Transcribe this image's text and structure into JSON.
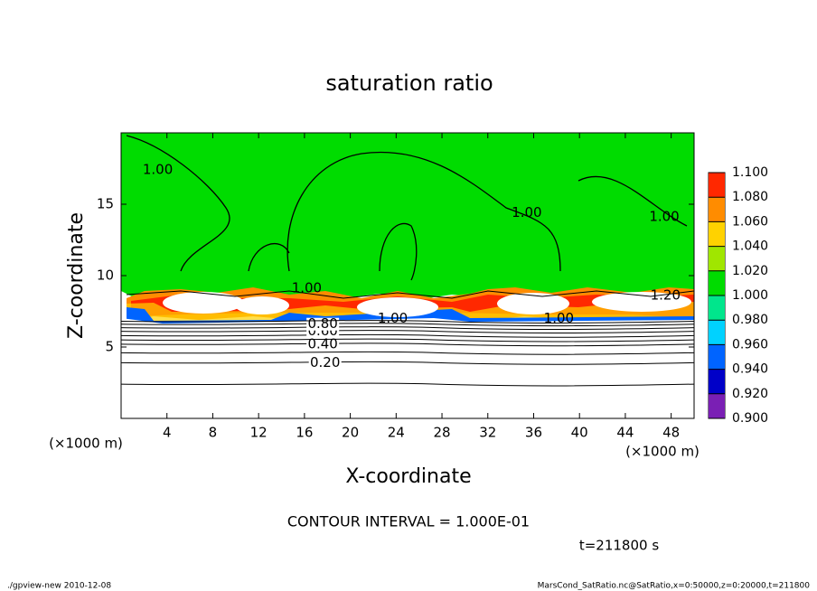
{
  "chart_data": {
    "type": "contour",
    "title": "saturation ratio",
    "x_label": "X-coordinate",
    "y_label": "Z-coordinate",
    "x_unit": "(×1000 m)",
    "x_unit_right": "(×1000 m)",
    "xlim": [
      0,
      50
    ],
    "ylim": [
      0,
      20
    ],
    "xticks": [
      4,
      8,
      12,
      16,
      20,
      24,
      28,
      32,
      36,
      40,
      44,
      48
    ],
    "yticks": [
      5,
      10,
      15
    ],
    "colorbar_ticks": [
      {
        "value": 0.9,
        "label": "0.900"
      },
      {
        "value": 0.92,
        "label": "0.920"
      },
      {
        "value": 0.94,
        "label": "0.940"
      },
      {
        "value": 0.96,
        "label": "0.960"
      },
      {
        "value": 0.98,
        "label": "0.980"
      },
      {
        "value": 1.0,
        "label": "1.000"
      },
      {
        "value": 1.02,
        "label": "1.020"
      },
      {
        "value": 1.04,
        "label": "1.040"
      },
      {
        "value": 1.06,
        "label": "1.060"
      },
      {
        "value": 1.08,
        "label": "1.080"
      },
      {
        "value": 1.1,
        "label": "1.100"
      }
    ],
    "colorbar_colors": [
      "#7a1fb4",
      "#0000c8",
      "#0064ff",
      "#00d2ff",
      "#00e68c",
      "#00dc00",
      "#a0e600",
      "#ffd200",
      "#ff8c00",
      "#ff2800"
    ],
    "contours": [
      {
        "z": 2.4
      },
      {
        "z": 3.9,
        "label": "0.20",
        "label_x": 17.8
      },
      {
        "z": 4.6
      },
      {
        "z": 5.2,
        "label": "0.40",
        "label_x": 17.6
      },
      {
        "z": 5.5
      },
      {
        "z": 5.8
      },
      {
        "z": 6.1,
        "label": "0.60",
        "label_x": 17.6
      },
      {
        "z": 6.35
      },
      {
        "z": 6.6,
        "label": "0.80",
        "label_x": 17.6
      },
      {
        "z": 6.8
      }
    ],
    "annotations": [
      {
        "text": "1.00",
        "x": 3.2,
        "z": 17.4
      },
      {
        "text": "1.00",
        "x": 35.4,
        "z": 14.4
      },
      {
        "text": "1.00",
        "x": 47.4,
        "z": 14.1
      },
      {
        "text": "1.00",
        "x": 16.2,
        "z": 9.1
      },
      {
        "text": "1.00",
        "x": 23.7,
        "z": 7.0
      },
      {
        "text": "1.00",
        "x": 38.2,
        "z": 7.0
      },
      {
        "text": "1.20",
        "x": 47.5,
        "z": 8.6
      }
    ],
    "interval_text": "CONTOUR INTERVAL = 1.000E-01",
    "time_text": "t=211800 s",
    "footer_left": "./gpview-new   2010-12-08",
    "footer_right": "MarsCond_SatRatio.nc@SatRatio,x=0:50000,z=0:20000,t=211800"
  }
}
